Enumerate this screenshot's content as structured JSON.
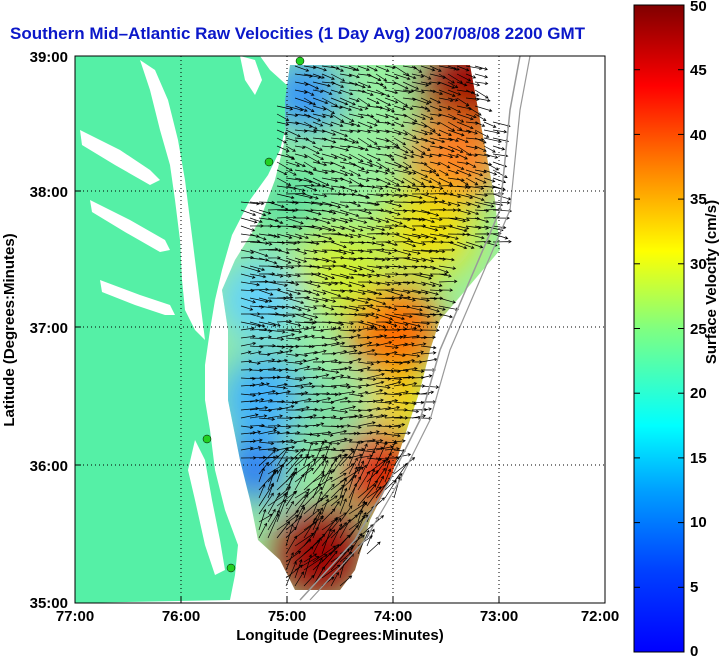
{
  "chart_data": {
    "type": "heatmap",
    "title": "Southern Mid–Atlantic Raw Velocities (1 Day Avg) 2007/08/08 2200 GMT",
    "xlabel": "Longitude (Degrees:Minutes)",
    "ylabel": "Latitude (Degrees:Minutes)",
    "xlim": [
      -77,
      -72
    ],
    "ylim": [
      35,
      39
    ],
    "x_ticks": [
      "77:00",
      "76:00",
      "75:00",
      "74:00",
      "73:00",
      "72:00"
    ],
    "y_ticks": [
      "39:00",
      "38:00",
      "37:00",
      "36:00",
      "35:00"
    ],
    "grid": "dotted",
    "colorbar": {
      "label": "Surface Velocity (cm/s)",
      "range": [
        0,
        50
      ],
      "ticks": [
        "50",
        "45",
        "40",
        "35",
        "30",
        "25",
        "20",
        "15",
        "10",
        "5",
        "0"
      ],
      "colormap": "jet"
    },
    "regions": [
      {
        "description_value_cm_s": 8,
        "lon": -74.9,
        "lat": 38.75
      },
      {
        "description_value_cm_s": 48,
        "lon": -73.15,
        "lat": 38.6
      },
      {
        "description_value_cm_s": 30,
        "lon": -73.6,
        "lat": 37.6
      },
      {
        "description_value_cm_s": 34,
        "lon": -74.0,
        "lat": 37.0
      },
      {
        "description_value_cm_s": 12,
        "lon": -75.1,
        "lat": 36.3
      },
      {
        "description_value_cm_s": 48,
        "lon": -74.3,
        "lat": 35.5
      }
    ]
  },
  "colors": {
    "title": "#0b18c9",
    "land": "#55f0a6",
    "station": "#22d022"
  }
}
